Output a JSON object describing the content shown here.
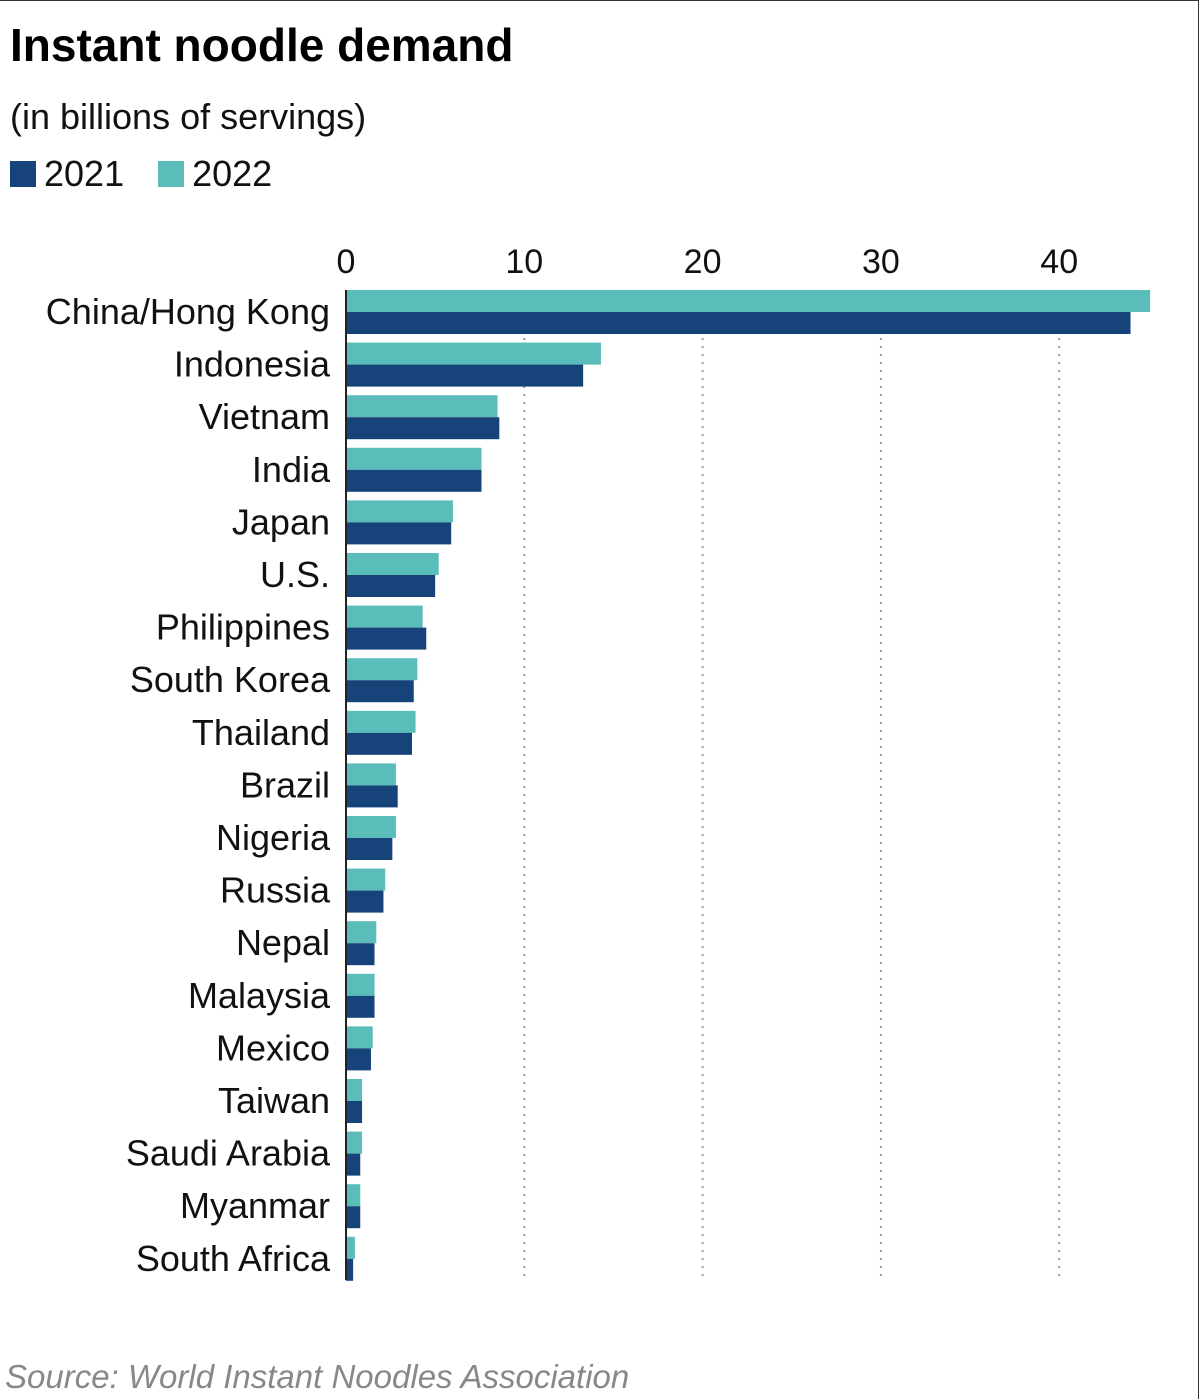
{
  "chart_data": {
    "type": "bar",
    "orientation": "horizontal",
    "title": "Instant noodle demand",
    "subtitle": "(in billions of servings)",
    "source": "Source: World Instant Noodles Association",
    "categories": [
      "China/Hong Kong",
      "Indonesia",
      "Vietnam",
      "India",
      "Japan",
      "U.S.",
      "Philippines",
      "South Korea",
      "Thailand",
      "Brazil",
      "Nigeria",
      "Russia",
      "Nepal",
      "Malaysia",
      "Mexico",
      "Taiwan",
      "Saudi Arabia",
      "Myanmar",
      "South Africa"
    ],
    "series": [
      {
        "name": "2022",
        "color": "#5bbdb9",
        "values": [
          45.1,
          14.3,
          8.5,
          7.6,
          6.0,
          5.2,
          4.3,
          4.0,
          3.9,
          2.8,
          2.8,
          2.2,
          1.7,
          1.6,
          1.5,
          0.9,
          0.9,
          0.8,
          0.5
        ]
      },
      {
        "name": "2021",
        "color": "#16447a",
        "values": [
          44.0,
          13.3,
          8.6,
          7.6,
          5.9,
          5.0,
          4.5,
          3.8,
          3.7,
          2.9,
          2.6,
          2.1,
          1.6,
          1.6,
          1.4,
          0.9,
          0.8,
          0.8,
          0.4
        ]
      }
    ],
    "xlim": [
      0,
      45.5
    ],
    "xticks": [
      "0",
      "10",
      "20",
      "30",
      "40"
    ],
    "xtick_values": [
      0,
      10,
      20,
      30,
      40
    ],
    "grid": "vertical dotted",
    "legend_position": "top-left"
  }
}
